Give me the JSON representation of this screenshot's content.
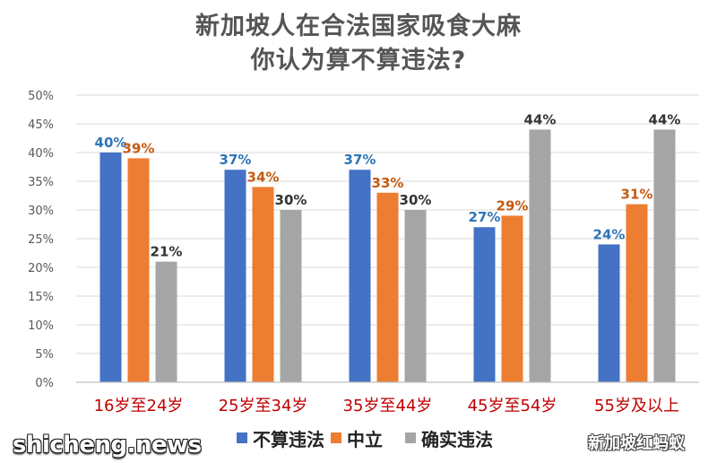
{
  "colors": {
    "series": [
      "#4472C4",
      "#ED7D31",
      "#A5A5A5"
    ],
    "value_labels": [
      "#2E75B6",
      "#C55A11",
      "#333333"
    ],
    "category_labels": "#C00000",
    "axis_labels": "#595959",
    "gridlines": "#D9D9D9",
    "title": "#555555"
  },
  "chart_data": {
    "type": "bar",
    "title_lines": [
      "新加坡人在合法国家吸食大麻",
      "你认为算不算违法?"
    ],
    "categories": [
      "16岁至24岁",
      "25岁至34岁",
      "35岁至44岁",
      "45岁至54岁",
      "55岁及以上"
    ],
    "series": [
      {
        "name": "不算违法",
        "values": [
          40,
          37,
          37,
          27,
          24
        ]
      },
      {
        "name": "中立",
        "values": [
          39,
          34,
          33,
          29,
          31
        ]
      },
      {
        "name": "确实违法",
        "values": [
          21,
          30,
          30,
          44,
          44
        ]
      }
    ],
    "unit": "%",
    "ylim": [
      0,
      50
    ],
    "yticks": [
      "0%",
      "5%",
      "10%",
      "15%",
      "20%",
      "25%",
      "30%",
      "35%",
      "40%",
      "45%",
      "50%"
    ],
    "grid": true,
    "legend_position": "bottom",
    "data_labels": true
  },
  "watermarks": {
    "left": "shicheng.news",
    "right": "新加坡红蚂蚁",
    "right_icon": "wechat-icon"
  }
}
